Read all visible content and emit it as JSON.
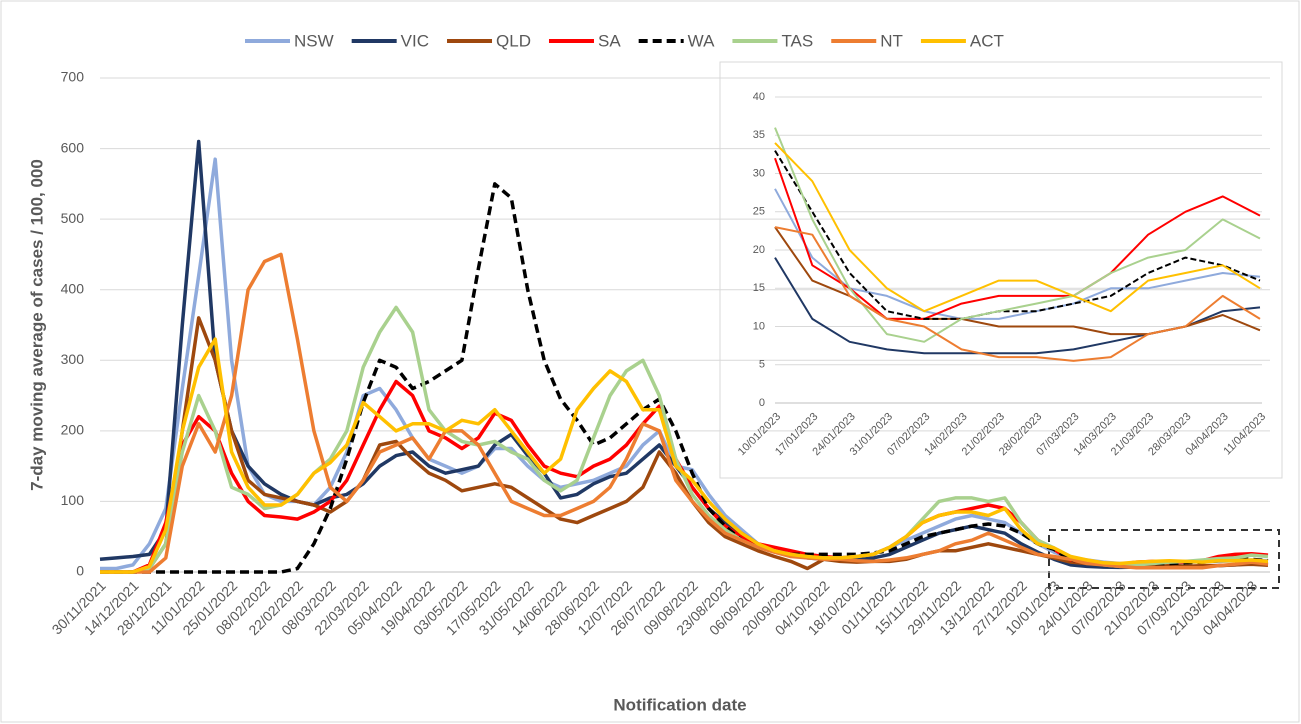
{
  "chart_data": [
    {
      "type": "line",
      "y_label": "7-day moving average of cases / 100, 000",
      "x_label": "Notification date",
      "legend": "top",
      "grid": true,
      "ylim": [
        0,
        700
      ],
      "yticks": [
        0,
        100,
        200,
        300,
        400,
        500,
        600,
        700
      ],
      "categories": [
        "30/11/2021",
        null,
        "14/12/2021",
        null,
        "28/12/2021",
        null,
        "11/01/2022",
        null,
        "25/01/2022",
        null,
        "08/02/2022",
        null,
        "22/02/2022",
        null,
        "08/03/2022",
        null,
        "22/03/2022",
        null,
        "05/04/2022",
        null,
        "19/04/2022",
        null,
        "03/05/2022",
        null,
        "17/05/2022",
        null,
        "31/05/2022",
        null,
        "14/06/2022",
        null,
        "28/06/2022",
        null,
        "12/07/2022",
        null,
        "26/07/2022",
        null,
        "09/08/2022",
        null,
        "23/08/2022",
        null,
        "06/09/2022",
        null,
        "20/09/2022",
        null,
        "04/10/2022",
        null,
        "18/10/2022",
        null,
        "01/11/2022",
        null,
        "15/11/2022",
        null,
        "29/11/2022",
        null,
        "13/12/2022",
        null,
        "27/12/2022",
        null,
        "10/01/2023",
        null,
        "24/01/2023",
        null,
        "07/02/2023",
        null,
        "21/02/2023",
        null,
        "07/03/2023",
        null,
        "21/03/2023",
        null,
        "04/04/2023",
        null
      ],
      "series": [
        {
          "name": "NSW",
          "color": "#8faadc",
          "values": [
            5,
            5,
            10,
            40,
            90,
            260,
            420,
            585,
            300,
            150,
            110,
            100,
            100,
            95,
            120,
            170,
            250,
            260,
            230,
            190,
            160,
            150,
            140,
            150,
            175,
            175,
            150,
            130,
            120,
            125,
            130,
            140,
            150,
            180,
            200,
            150,
            145,
            110,
            80,
            60,
            40,
            30,
            25,
            22,
            20,
            20,
            22,
            25,
            35,
            45,
            55,
            65,
            75,
            80,
            75,
            70,
            55,
            40,
            28,
            20,
            17,
            14,
            12,
            12,
            11,
            12,
            13,
            15,
            15,
            16,
            17,
            16
          ]
        },
        {
          "name": "VIC",
          "color": "#203864",
          "values": [
            18,
            20,
            22,
            25,
            60,
            350,
            610,
            300,
            200,
            150,
            125,
            110,
            100,
            95,
            105,
            110,
            125,
            150,
            165,
            170,
            150,
            140,
            145,
            150,
            180,
            195,
            165,
            140,
            105,
            110,
            125,
            135,
            140,
            160,
            180,
            150,
            120,
            90,
            70,
            55,
            40,
            30,
            25,
            20,
            18,
            17,
            18,
            20,
            25,
            35,
            45,
            55,
            60,
            65,
            60,
            55,
            40,
            28,
            18,
            10,
            8,
            7,
            6.5,
            7,
            6.5,
            6.5,
            7,
            8,
            9,
            10,
            12,
            12
          ]
        },
        {
          "name": "QLD",
          "color": "#9e480e",
          "values": [
            0,
            0,
            0,
            5,
            40,
            200,
            360,
            300,
            200,
            130,
            110,
            105,
            100,
            95,
            85,
            100,
            130,
            180,
            185,
            160,
            140,
            130,
            115,
            120,
            125,
            120,
            105,
            90,
            75,
            70,
            80,
            90,
            100,
            120,
            170,
            140,
            100,
            70,
            50,
            40,
            30,
            22,
            15,
            5,
            18,
            15,
            14,
            15,
            15,
            18,
            25,
            30,
            30,
            35,
            40,
            35,
            30,
            25,
            20,
            14,
            12,
            11,
            11,
            10,
            10,
            10,
            8,
            9,
            9,
            10,
            11,
            9.5
          ]
        },
        {
          "name": "SA",
          "color": "#ff0000",
          "values": [
            0,
            0,
            0,
            10,
            70,
            180,
            220,
            200,
            140,
            100,
            80,
            78,
            75,
            85,
            100,
            130,
            180,
            230,
            270,
            250,
            200,
            190,
            175,
            190,
            225,
            215,
            180,
            150,
            140,
            135,
            150,
            160,
            180,
            210,
            235,
            160,
            120,
            90,
            65,
            50,
            40,
            35,
            30,
            25,
            22,
            20,
            22,
            25,
            35,
            50,
            70,
            80,
            85,
            90,
            95,
            90,
            70,
            45,
            32,
            17,
            13,
            11,
            11,
            14,
            15,
            14,
            14,
            16,
            22,
            25,
            26,
            24
          ]
        },
        {
          "name": "WA",
          "color": "#000000",
          "dashed": true,
          "values": [
            0,
            0,
            0,
            0,
            0,
            0,
            0,
            0,
            0,
            0,
            0,
            0,
            5,
            40,
            90,
            160,
            240,
            300,
            290,
            260,
            270,
            285,
            300,
            430,
            550,
            530,
            400,
            300,
            245,
            215,
            180,
            190,
            210,
            230,
            245,
            200,
            140,
            90,
            65,
            45,
            35,
            30,
            25,
            25,
            25,
            25,
            25,
            27,
            30,
            40,
            50,
            55,
            60,
            65,
            68,
            65,
            55,
            40,
            32,
            17,
            14,
            12,
            11,
            11,
            12,
            12,
            13,
            14,
            16,
            18,
            18,
            16
          ]
        },
        {
          "name": "TAS",
          "color": "#a9d18e",
          "values": [
            0,
            0,
            0,
            5,
            40,
            170,
            250,
            200,
            120,
            110,
            90,
            95,
            110,
            140,
            160,
            200,
            290,
            340,
            375,
            340,
            230,
            200,
            185,
            180,
            185,
            170,
            160,
            130,
            115,
            130,
            190,
            250,
            285,
            300,
            250,
            160,
            110,
            80,
            60,
            45,
            35,
            30,
            25,
            20,
            20,
            20,
            22,
            25,
            35,
            50,
            75,
            100,
            105,
            105,
            100,
            105,
            70,
            45,
            34,
            22,
            15,
            10,
            8,
            10,
            12,
            14,
            15,
            17,
            19,
            20,
            24,
            22
          ]
        },
        {
          "name": "NT",
          "color": "#ed7d31",
          "values": [
            0,
            0,
            0,
            0,
            20,
            150,
            210,
            170,
            250,
            400,
            440,
            450,
            330,
            200,
            120,
            100,
            130,
            170,
            180,
            190,
            160,
            200,
            200,
            180,
            140,
            100,
            90,
            80,
            80,
            90,
            100,
            120,
            160,
            210,
            200,
            130,
            100,
            75,
            55,
            45,
            35,
            28,
            22,
            20,
            18,
            18,
            16,
            15,
            17,
            20,
            25,
            30,
            40,
            45,
            55,
            45,
            35,
            25,
            22,
            18,
            12,
            10,
            8,
            6,
            6,
            6,
            6,
            6,
            9,
            11,
            14,
            11
          ]
        },
        {
          "name": "ACT",
          "color": "#ffc000",
          "values": [
            0,
            0,
            0,
            8,
            60,
            200,
            290,
            330,
            170,
            120,
            95,
            95,
            110,
            140,
            155,
            180,
            240,
            220,
            200,
            210,
            210,
            200,
            215,
            210,
            230,
            200,
            170,
            140,
            160,
            230,
            260,
            285,
            270,
            230,
            230,
            150,
            130,
            100,
            75,
            55,
            40,
            30,
            25,
            22,
            20,
            20,
            22,
            25,
            35,
            50,
            70,
            80,
            85,
            85,
            80,
            90,
            60,
            40,
            34,
            22,
            17,
            13,
            12,
            14,
            15,
            16,
            15,
            14,
            16,
            16,
            17,
            15
          ]
        }
      ]
    },
    {
      "type": "line",
      "grid": true,
      "ylim": [
        0,
        40
      ],
      "yticks": [
        0,
        5,
        10,
        15,
        20,
        25,
        30,
        35,
        40
      ],
      "categories": [
        "10/01/2023",
        "17/01/2023",
        "24/01/2023",
        "31/01/2023",
        "07/02/2023",
        "14/02/2023",
        "21/02/2023",
        "28/02/2023",
        "07/03/2023",
        "14/03/2023",
        "21/03/2023",
        "28/03/2023",
        "04/04/2023",
        "11/04/2023"
      ],
      "series": [
        {
          "name": "NSW",
          "color": "#8faadc",
          "values": [
            28,
            19,
            15,
            14,
            12,
            11,
            11,
            12,
            13,
            15,
            15,
            16,
            17,
            16.5
          ]
        },
        {
          "name": "VIC",
          "color": "#203864",
          "values": [
            19,
            11,
            8,
            7,
            6.5,
            6.5,
            6.5,
            6.5,
            7,
            8,
            9,
            10,
            12,
            12.5
          ]
        },
        {
          "name": "QLD",
          "color": "#9e480e",
          "values": [
            23,
            16,
            14,
            11,
            11,
            11,
            10,
            10,
            10,
            9,
            9,
            10,
            11.5,
            9.5
          ]
        },
        {
          "name": "SA",
          "color": "#ff0000",
          "values": [
            32,
            18,
            15,
            11,
            11,
            13,
            14,
            14,
            14,
            17,
            22,
            25,
            27,
            24.5
          ]
        },
        {
          "name": "WA",
          "color": "#000000",
          "dashed": true,
          "values": [
            33,
            25,
            17,
            12,
            11,
            11,
            12,
            12,
            13,
            14,
            17,
            19,
            18,
            16
          ]
        },
        {
          "name": "TAS",
          "color": "#a9d18e",
          "values": [
            36,
            24,
            15,
            9,
            8,
            11,
            12,
            13,
            14,
            17,
            19,
            20,
            24,
            21.5
          ]
        },
        {
          "name": "NT",
          "color": "#ed7d31",
          "values": [
            23,
            22,
            14,
            11,
            10,
            7,
            6,
            6,
            5.5,
            6,
            9,
            10,
            14,
            11
          ]
        },
        {
          "name": "ACT",
          "color": "#ffc000",
          "values": [
            34,
            29,
            20,
            15,
            12,
            14,
            16,
            16,
            14,
            12,
            16,
            17,
            18,
            15
          ]
        }
      ]
    }
  ]
}
